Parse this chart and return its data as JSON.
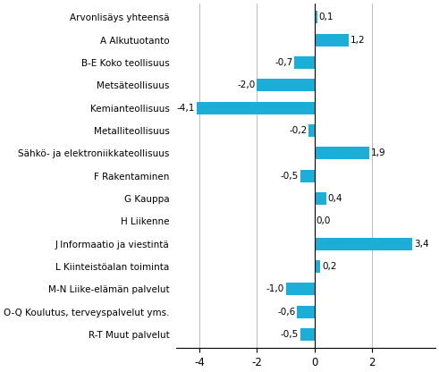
{
  "categories": [
    "R-T Muut palvelut",
    "O-Q Koulutus, terveyspalvelut yms.",
    "M-N Liike-elämän palvelut",
    "L Kiinteistöalan toiminta",
    "J Informaatio ja viestintä",
    "H Liikenne",
    "G Kauppa",
    "F Rakentaminen",
    "Sähkö- ja elektroniikkateollisuus",
    "Metalliteollisuus",
    "Kemianteollisuus",
    "Metsäteollisuus",
    "B-E Koko teollisuus",
    "A Alkutuotanto",
    "Arvonlisäys yhteensä"
  ],
  "values": [
    -0.5,
    -0.6,
    -1.0,
    0.2,
    3.4,
    0.0,
    0.4,
    -0.5,
    1.9,
    -0.2,
    -4.1,
    -2.0,
    -0.7,
    1.2,
    0.1
  ],
  "bar_color": "#1caed6",
  "xlim": [
    -4.8,
    4.2
  ],
  "xticks": [
    -4,
    -2,
    0,
    2
  ],
  "value_label_fontsize": 7.5,
  "category_fontsize": 7.5,
  "tick_fontsize": 8.5,
  "background_color": "#ffffff",
  "grid_color": "#bbbbbb",
  "bar_height": 0.55
}
